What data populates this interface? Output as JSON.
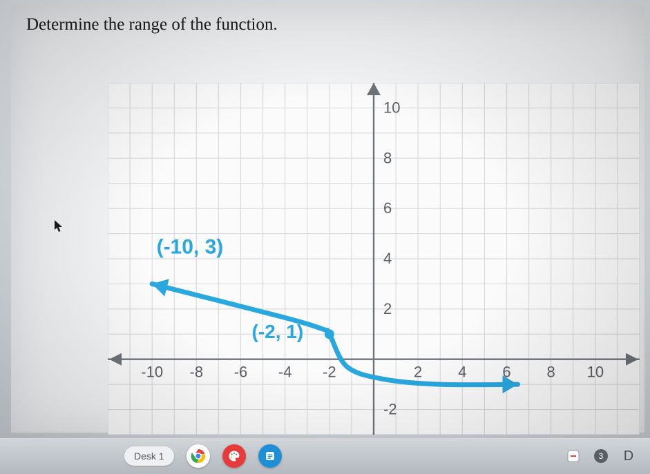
{
  "question": {
    "text": "Determine the range of the function."
  },
  "chart": {
    "type": "line",
    "background_color": "#fbfbfc",
    "grid_color": "#d9dbde",
    "grid_weight": 1.2,
    "axis_color": "#6e7378",
    "axis_weight": 2.4,
    "xlim": [
      -12,
      12
    ],
    "ylim": [
      -3,
      11
    ],
    "xticks": [
      -10,
      -8,
      -6,
      -4,
      -2,
      2,
      4,
      6,
      8,
      10
    ],
    "yticks": [
      -2,
      2,
      4,
      6,
      8,
      10
    ],
    "tick_font_size": 22,
    "tick_color": "#5a5e63",
    "curve": {
      "color": "#29a7df",
      "width": 7,
      "left_arrow_at": [
        -10,
        3
      ],
      "right_arrow_at": [
        6.5,
        -1
      ],
      "path": [
        [
          -10,
          3
        ],
        [
          -4.2,
          1.7
        ],
        [
          -2.3,
          1.2
        ],
        [
          -2,
          1
        ],
        [
          -1.2,
          -0.3
        ],
        [
          0.5,
          -0.8
        ],
        [
          3,
          -1
        ],
        [
          6.5,
          -1
        ]
      ]
    },
    "marker": {
      "at": [
        -2,
        1
      ],
      "radius": 7,
      "fill": "#29a7df"
    },
    "annotations": [
      {
        "text": "(-10, 3)",
        "at_data": [
          -9.8,
          4.2
        ],
        "anchor": "start",
        "color": "#29a7df",
        "font_size": 30,
        "font_weight": "bold"
      },
      {
        "text": "(-2, 1)",
        "at_data": [
          -5.5,
          0.85
        ],
        "anchor": "start",
        "color": "#29a7df",
        "font_size": 28,
        "font_weight": "bold"
      }
    ]
  },
  "taskbar": {
    "desk_label": "Desk 1",
    "icons": {
      "chrome": {
        "bg": "#ffffff"
      },
      "palette": {
        "bg": "#e63b3b"
      },
      "notes": {
        "bg": "#1e8fd6"
      }
    },
    "right": {
      "badge_text": "3",
      "letter": "D"
    }
  }
}
